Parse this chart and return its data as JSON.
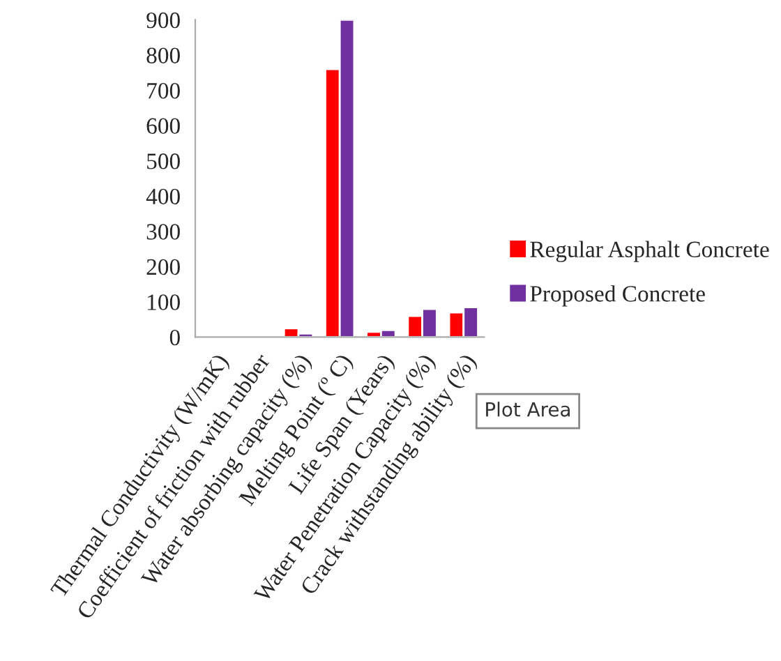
{
  "chart_data": {
    "type": "bar",
    "categories": [
      "Thermal Conductivity (W/mK)",
      "Coefficient of friction with rubber",
      "Water absorbing capacity (%)",
      "Melting Point (º C)",
      "Life Span (Years)",
      "Water Penetration Capacity (%)",
      "Crack withstanding ability (%)"
    ],
    "series": [
      {
        "name": "Regular Asphalt Concrete",
        "color": "#ff0000",
        "values": [
          null,
          null,
          25,
          760,
          15,
          60,
          70
        ]
      },
      {
        "name": "Proposed Concrete",
        "color": "#7030a0",
        "values": [
          null,
          null,
          10,
          900,
          20,
          80,
          85
        ]
      }
    ],
    "ylim": [
      0,
      900
    ],
    "yticks": [
      0,
      100,
      200,
      300,
      400,
      500,
      600,
      700,
      800,
      900
    ],
    "grid": false,
    "legend": "right",
    "annotations": [
      "Plot Area"
    ]
  }
}
